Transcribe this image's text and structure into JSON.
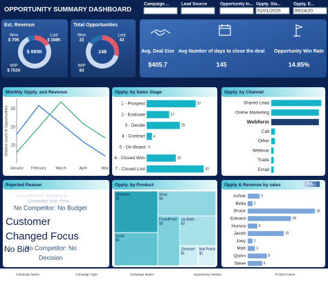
{
  "header": {
    "title": "OPPORTUNITY SUMMARY DASHBOARD",
    "filters": [
      {
        "label": "Campaign ..."
      },
      {
        "label": "Lead Source"
      },
      {
        "label": "Opportunity In..."
      },
      {
        "label": "Oppty. Sta...",
        "value": "01/01/2020"
      },
      {
        "label": "Oppty. E...",
        "value": "09/24/20"
      }
    ]
  },
  "kpis": [
    {
      "label": "Avg. Deal Size",
      "value": "$405.7"
    },
    {
      "label": "Avg Number of days to close the deal",
      "value": "145"
    },
    {
      "label": "Opportunity Win Rate",
      "value": "14.85%"
    }
  ],
  "rejected_reason": {
    "title": "Rejected Reason",
    "words": [
      "Competitor Won: Relationship",
      "Competitor Won: Price",
      "No Competitor: No Budget",
      "Customer",
      "Changed Focus",
      "No Competitor: No",
      "No Bid",
      "Decision"
    ]
  },
  "footer_columns": [
    "Campaign Name",
    "Campaign Type",
    "Campaign Maker",
    "Opportunity Industry",
    "Product Name"
  ],
  "chart_data": [
    {
      "type": "pie",
      "title": "Est. Revenue",
      "categories": [
        "Won",
        "Lost",
        "WIP"
      ],
      "values": [
        70000,
        168000,
        751000
      ],
      "value_labels": [
        "$ 70K",
        "$ 168K",
        "$ 751K"
      ],
      "colors": [
        "#2b6cb0",
        "#e05a6a",
        "#c9d9f0"
      ],
      "center_label": "$ 990K"
    },
    {
      "type": "pie",
      "title": "Total Opportunities",
      "categories": [
        "Won",
        "Lost",
        "WIP"
      ],
      "values": [
        22,
        43,
        83
      ],
      "colors": [
        "#2b6cb0",
        "#e05a6a",
        "#c9d9f0"
      ],
      "center_label": "148"
    },
    {
      "type": "line",
      "title": "Monthly Oppty. and Revenue",
      "ylabel": "Distinct count of Opportunities",
      "categories": [
        "January",
        "February",
        "March",
        "April",
        "May"
      ],
      "series": [
        {
          "color": "#2f7ed8",
          "values": [
            18,
            26,
            21,
            16,
            12
          ]
        },
        {
          "color": "#3cb371",
          "values": [
            13,
            20,
            27,
            21,
            17
          ]
        }
      ],
      "ylim": [
        10,
        28
      ],
      "yticks": [
        15,
        20,
        25
      ]
    },
    {
      "type": "bar",
      "title": "Oppty. by Sales Stage",
      "categories": [
        "1 - Prospect",
        "2 - Evaluate",
        "3 - Decide",
        "4 - Contract",
        "5 - On-Board",
        "6 - Closed Won",
        "7 - Closed Lost"
      ],
      "values": [
        37,
        17,
        25,
        4,
        0,
        22,
        43
      ],
      "xlim": [
        0,
        46
      ],
      "color": "#17b3c6",
      "show_values": true
    },
    {
      "type": "bar",
      "title": "Oppty. by Channel",
      "categories": [
        "Shared Lead",
        "Online Marketing",
        "Webform",
        "Call",
        "Other",
        "Webinar",
        "Trade",
        "Email"
      ],
      "values": [
        40,
        38,
        38,
        3,
        3,
        2,
        2,
        2
      ],
      "xlim": [
        0,
        42
      ],
      "colors": [
        "#17b3c6",
        "#17b3c6",
        "#1c3d6e",
        "#17b3c6",
        "#17b3c6",
        "#17b3c6",
        "#17b3c6",
        "#17b3c6"
      ]
    },
    {
      "type": "treemap",
      "title": "Oppty. by Product",
      "categories": [
        "Shampoo",
        "Scrub",
        "Soap",
        "FoundPoint",
        "Lip Balm",
        "Cleanser",
        "Nail Polish"
      ],
      "values": [
        5,
        4,
        4,
        3,
        3,
        1,
        1
      ],
      "value_labels": [
        "$5",
        "$4",
        "$4",
        "$3",
        "$3",
        "$1",
        "$1"
      ],
      "colors": [
        "#2aa5b8",
        "#5fc3d1",
        "#8fd6e0",
        "#7ccfdb",
        "#a8e0e8",
        "#c9edf2",
        "#d8f2f6"
      ]
    },
    {
      "type": "bar",
      "title": "Oppty & Revenue by sales",
      "legend_label": "Es...",
      "categories": [
        "Ashok",
        "Bella",
        "Bruce",
        "Edward",
        "Humza",
        "Jacob",
        "Joey",
        "Matt",
        "Quinn",
        "Steve"
      ],
      "values": [
        5,
        2,
        28,
        18,
        4,
        15,
        2,
        3,
        8,
        6
      ],
      "xlim": [
        0,
        30
      ],
      "color": "#7aa7d8",
      "show_values": true
    }
  ]
}
